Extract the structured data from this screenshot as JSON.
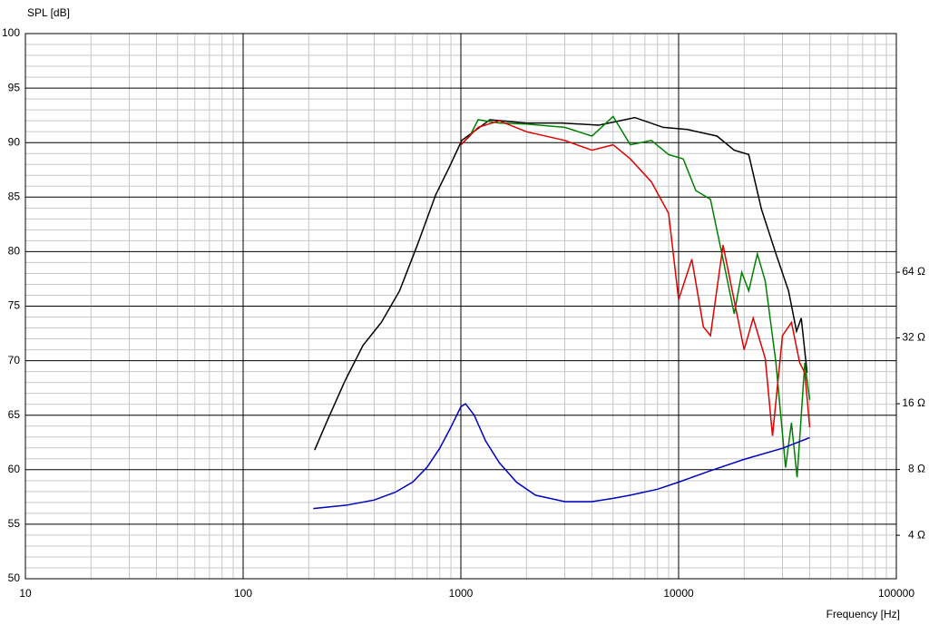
{
  "chart_data": {
    "type": "line",
    "y_label": "SPL [dB]",
    "x_label": "Frequency [Hz]",
    "xscale": "log",
    "xlim": [
      10,
      100000
    ],
    "xticks": [
      10,
      100,
      1000,
      10000,
      100000
    ],
    "ylim": [
      50,
      100
    ],
    "yticks": [
      50,
      55,
      60,
      65,
      70,
      75,
      80,
      85,
      90,
      95,
      100
    ],
    "y2scale": "log",
    "y2lim": [
      2.53,
      791
    ],
    "y2ticks": [
      {
        "value": 4,
        "label": "4 Ω"
      },
      {
        "value": 8,
        "label": "8 Ω"
      },
      {
        "value": 16,
        "label": "16 Ω"
      },
      {
        "value": 32,
        "label": "32 Ω"
      },
      {
        "value": 64,
        "label": "64 Ω"
      }
    ],
    "grid": true,
    "minor_grid": true,
    "series": [
      {
        "color": "#000000",
        "x": [
          213,
          241,
          293,
          355,
          431,
          523,
          631,
          766,
          883,
          1010,
          1360,
          2000,
          2900,
          4300,
          6300,
          8500,
          11000,
          15000,
          18000,
          21000,
          24000,
          28000,
          32000,
          34800,
          36600,
          38900
        ],
        "values": [
          61.8,
          64.3,
          68.1,
          71.4,
          73.5,
          76.4,
          80.6,
          85.2,
          87.7,
          90.2,
          92.1,
          91.8,
          91.8,
          91.6,
          92.3,
          91.4,
          91.2,
          90.6,
          89.3,
          88.9,
          83.9,
          79.8,
          76.4,
          72.7,
          73.9,
          68.9
        ]
      },
      {
        "color": "#008000",
        "x": [
          1000,
          1100,
          1200,
          1500,
          2000,
          3000,
          4000,
          5000,
          6000,
          7500,
          9000,
          10500,
          12000,
          14000,
          16000,
          18000,
          19500,
          21000,
          23000,
          25000,
          28000,
          31000,
          33000,
          35000,
          38000,
          40000
        ],
        "values": [
          89.8,
          90.6,
          92.1,
          91.8,
          91.7,
          91.4,
          90.6,
          92.4,
          89.8,
          90.2,
          88.9,
          88.5,
          85.6,
          84.8,
          79.3,
          74.3,
          78.1,
          76.4,
          79.8,
          77.3,
          69.8,
          60.2,
          64.3,
          59.3,
          69.8,
          66.4
        ]
      },
      {
        "color": "#e00000",
        "x": [
          1000,
          1200,
          1500,
          2000,
          3000,
          4000,
          5000,
          6000,
          7500,
          9000,
          10000,
          11500,
          13000,
          14000,
          16000,
          20000,
          22000,
          25000,
          27000,
          30000,
          33000,
          36000,
          38000,
          40000
        ],
        "values": [
          89.8,
          91.4,
          92.0,
          91.0,
          90.2,
          89.3,
          89.8,
          88.5,
          86.4,
          83.5,
          75.6,
          79.3,
          73.1,
          72.3,
          80.6,
          71.0,
          73.9,
          70.2,
          63.1,
          72.3,
          73.5,
          69.8,
          68.9,
          63.9
        ]
      },
      {
        "color": "#0000c0",
        "axis": "y2",
        "x": [
          210,
          300,
          400,
          500,
          600,
          700,
          800,
          900,
          1000,
          1050,
          1150,
          1300,
          1500,
          1800,
          2200,
          3000,
          4000,
          5000,
          6000,
          8000,
          10000,
          14000,
          20000,
          30000,
          40000
        ],
        "values": [
          5.3,
          5.5,
          5.8,
          6.3,
          7.0,
          8.2,
          10.0,
          12.5,
          15.5,
          16.0,
          14.2,
          10.8,
          8.6,
          7.0,
          6.1,
          5.7,
          5.7,
          5.9,
          6.1,
          6.5,
          7.0,
          7.9,
          8.9,
          10.0,
          11.2
        ]
      }
    ]
  }
}
